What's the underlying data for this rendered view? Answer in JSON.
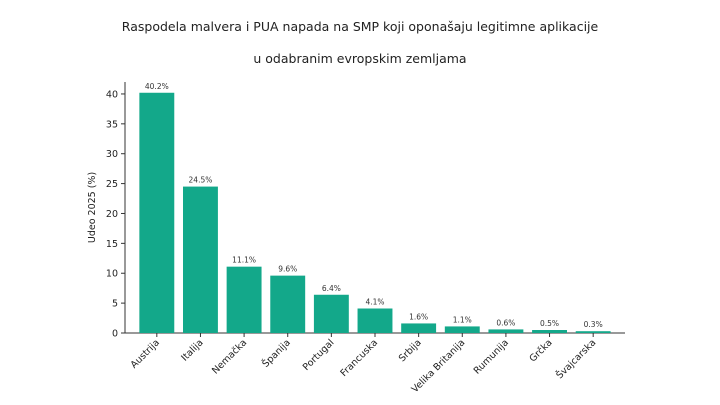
{
  "chart_data": {
    "type": "bar",
    "title_line1": "Raspodela malvera i PUA napada na SMP koji oponašaju legitimne aplikacije",
    "title_line2": "u odabranim evropskim zemljama",
    "xlabel": "",
    "ylabel": "Udeo 2025 (%)",
    "ylim": [
      0,
      42
    ],
    "yticks": [
      0,
      5,
      10,
      15,
      20,
      25,
      30,
      35,
      40
    ],
    "categories": [
      "Austrija",
      "Italija",
      "Nemačka",
      "Španija",
      "Portugal",
      "Francuska",
      "Srbija",
      "Velika Britanija",
      "Rumunija",
      "Grčka",
      "Švajcarska"
    ],
    "values": [
      40.2,
      24.5,
      11.1,
      9.6,
      6.4,
      4.1,
      1.6,
      1.1,
      0.6,
      0.5,
      0.3
    ],
    "data_labels": [
      "40.2%",
      "24.5%",
      "11.1%",
      "9.6%",
      "6.4%",
      "4.1%",
      "1.6%",
      "1.1%",
      "0.6%",
      "0.5%",
      "0.3%"
    ],
    "bar_color": "#13a88a",
    "grid": false,
    "legend": "none"
  }
}
